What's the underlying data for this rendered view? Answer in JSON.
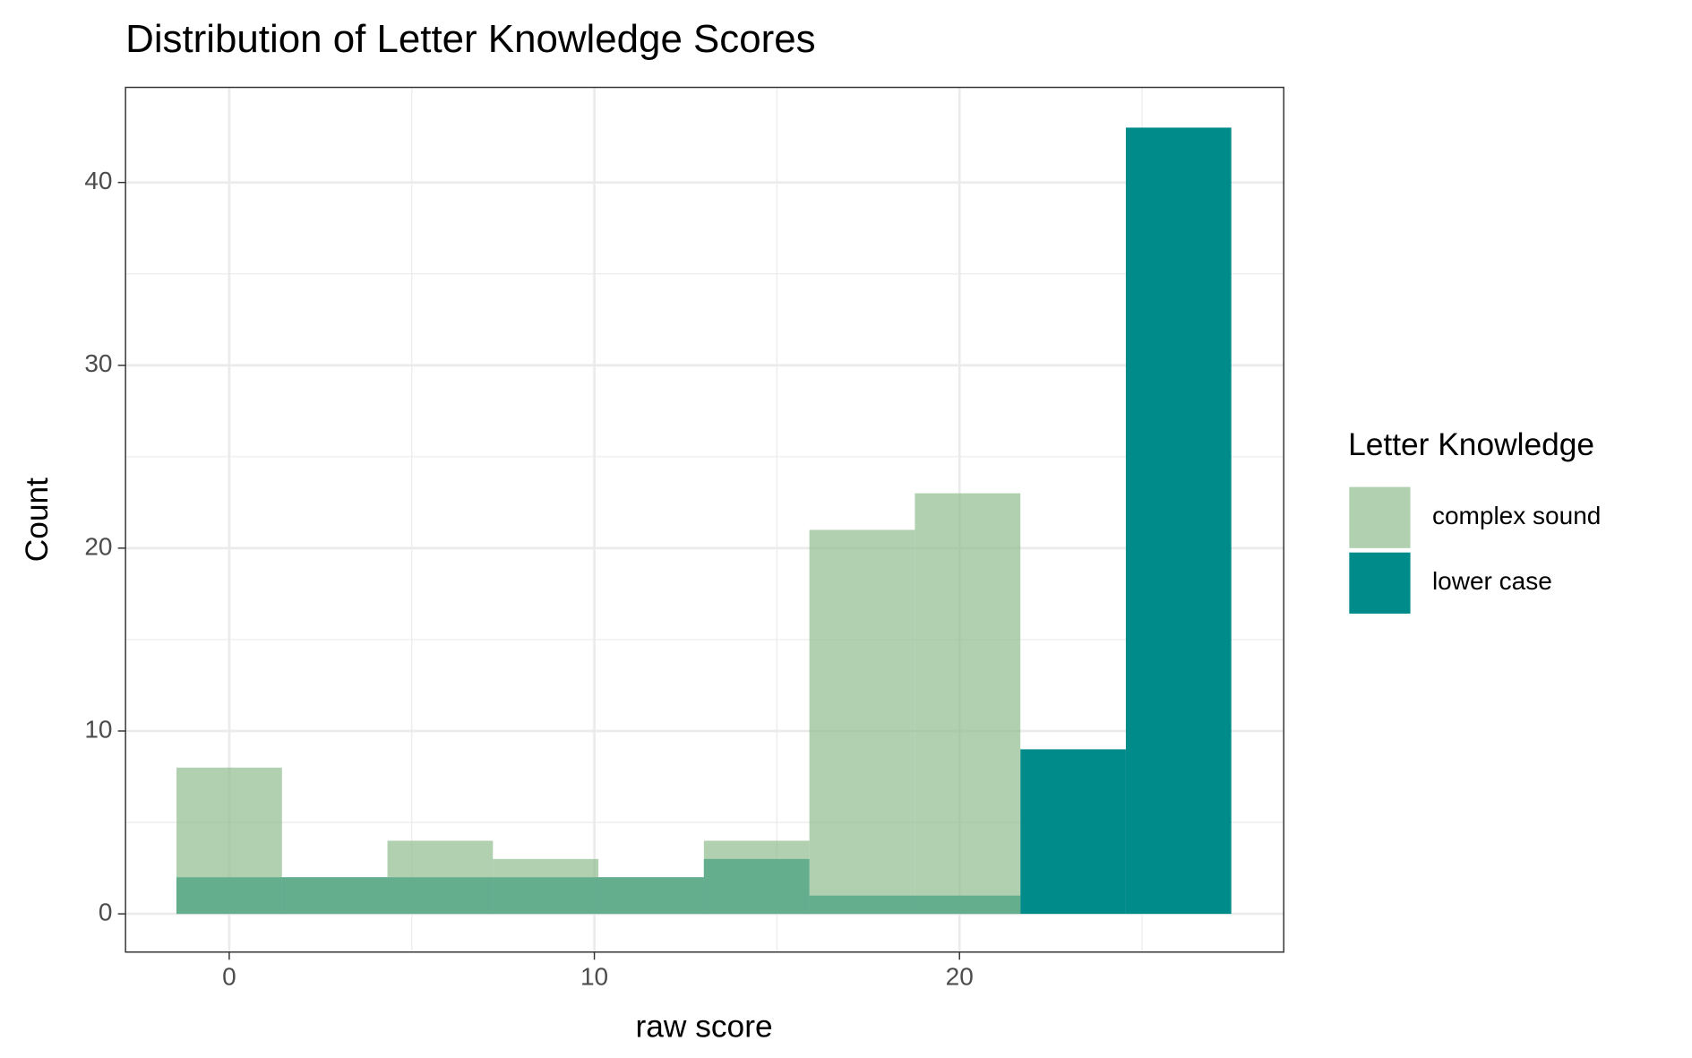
{
  "chart_data": {
    "type": "histogram",
    "title": "Distribution of Letter Knowledge Scores",
    "x_label": "raw score",
    "y_label": "Count",
    "legend_title": "Letter Knowledge",
    "bins": [
      -1.444,
      1.444,
      4.333,
      7.222,
      10.111,
      13,
      15.889,
      18.778,
      21.667,
      24.556,
      27.444
    ],
    "series": [
      {
        "name": "complex sound",
        "color": "#8fbc8f",
        "opacity": 0.7,
        "values": [
          8,
          2,
          4,
          3,
          2,
          4,
          21,
          23,
          0,
          0
        ]
      },
      {
        "name": "lower case",
        "color": "#008b8b",
        "opacity": 1,
        "values": [
          2,
          2,
          2,
          2,
          2,
          3,
          1,
          1,
          9,
          43
        ]
      }
    ],
    "xlim": [
      -2.84,
      28.88
    ],
    "ylim": [
      -2.09,
      45.2
    ],
    "xticks": [
      0,
      10,
      20
    ],
    "yticks": [
      0,
      10,
      20,
      30,
      40
    ],
    "x_minor_ticks": [
      5,
      15,
      25
    ],
    "y_minor_ticks": [
      5,
      15,
      25,
      35
    ],
    "grid": true,
    "legend_position": "right"
  }
}
